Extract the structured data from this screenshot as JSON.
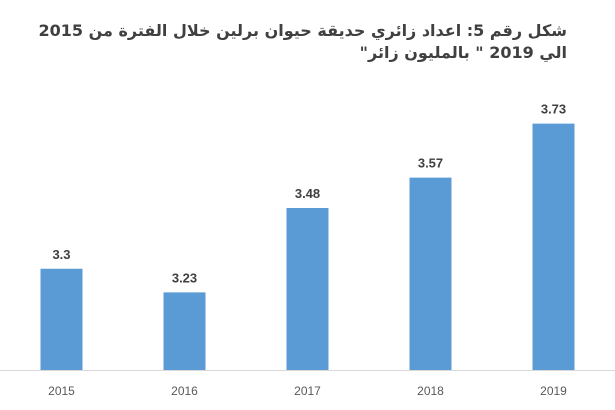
{
  "chart_data": {
    "type": "bar",
    "title": "شكل رقم 5: اعداد زائري حديقة حيوان برلين خلال الفترة من 2015 الي 2019 \" بالمليون زائر\"",
    "categories": [
      "2015",
      "2016",
      "2017",
      "2018",
      "2019"
    ],
    "values": [
      3.3,
      3.23,
      3.48,
      3.57,
      3.73
    ],
    "value_labels": [
      "3.3",
      "3.23",
      "3.48",
      "3.57",
      "3.73"
    ],
    "xlabel": "",
    "ylabel": "",
    "ylim": [
      3.0,
      3.8
    ],
    "grid": false,
    "legend": "none",
    "colors": {
      "bar": "#5b9bd5",
      "text": "#404040",
      "axis": "#d9d9d9"
    }
  }
}
